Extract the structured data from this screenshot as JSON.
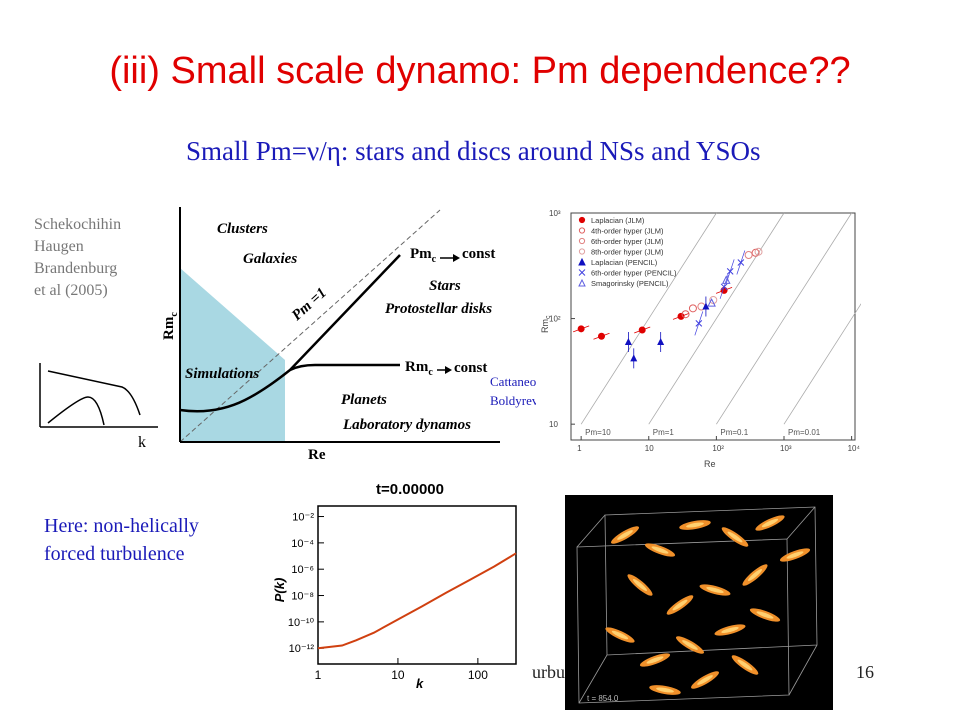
{
  "slide": {
    "title": "(iii) Small scale dynamo: Pm dependence??",
    "subtitle": "Small Pm=ν/η:  stars and discs around NSs and YSOs",
    "authors": "Schekochihin\nHaugen\nBrandenburg\net al (2005)",
    "cattaneo": "Cattaneo,\nBoldyrev",
    "note": "Here: non-helically\nforced turbulence",
    "footer": "urbu",
    "page_number": "16"
  },
  "sketch": {
    "xlabel": "k"
  },
  "regime_diagram": {
    "xlabel": "Re",
    "ylabel": "Rm",
    "ylabel_sub": "c",
    "regions": [
      "Clusters",
      "Galaxies",
      "Stars",
      "Protostellar disks",
      "Simulations",
      "Planets",
      "Laboratory dynamos"
    ],
    "line_label": "Pm =1",
    "upper_branch": "Pm",
    "upper_branch_sub": "c",
    "upper_branch_const": "const",
    "lower_branch": "Rm",
    "lower_branch_sub": "c",
    "lower_branch_const": "const",
    "colors": {
      "simulations_fill": "#a9d8e3"
    }
  },
  "chart_data": [
    {
      "type": "scatter",
      "xlabel": "Re",
      "ylabel": "Rm",
      "ylabel_sub": "c",
      "x_scale": "log",
      "y_scale": "log",
      "x_ticks": [
        "1",
        "10",
        "10²",
        "10³",
        "10⁴"
      ],
      "y_ticks": [
        "10",
        "10²",
        "10³"
      ],
      "pm_lines": [
        "Pm=10",
        "Pm=1",
        "Pm=0.1",
        "Pm=0.01"
      ],
      "legend_position": "top-left",
      "series": [
        {
          "name": "Laplacian (JLM)",
          "color": "#e00000",
          "marker": "filled-circle",
          "points": [
            [
              1,
              80
            ],
            [
              2,
              68
            ],
            [
              8,
              78
            ],
            [
              30,
              105
            ],
            [
              130,
              185
            ]
          ]
        },
        {
          "name": "4th-order hyper (JLM)",
          "color": "#e06060",
          "marker": "open-circle",
          "points": [
            [
              35,
              110
            ],
            [
              45,
              125
            ],
            [
              380,
              420
            ]
          ]
        },
        {
          "name": "6th-order hyper (JLM)",
          "color": "#e08080",
          "marker": "open-circle",
          "points": [
            [
              60,
              130
            ],
            [
              300,
              400
            ]
          ]
        },
        {
          "name": "8th-order hyper (JLM)",
          "color": "#e0a0a0",
          "marker": "open-circle",
          "points": [
            [
              90,
              150
            ],
            [
              420,
              430
            ]
          ]
        },
        {
          "name": "Laplacian (PENCIL)",
          "color": "#1010c0",
          "marker": "filled-triangle",
          "points": [
            [
              5,
              60
            ],
            [
              6,
              42
            ],
            [
              15,
              60
            ],
            [
              70,
              130
            ]
          ]
        },
        {
          "name": "6th-order hyper (PENCIL)",
          "color": "#4040e0",
          "marker": "cross",
          "points": [
            [
              55,
              90
            ],
            [
              130,
              200
            ],
            [
              160,
              280
            ],
            [
              230,
              340
            ]
          ]
        },
        {
          "name": "Smagorinsky (PENCIL)",
          "color": "#6060e0",
          "marker": "open-triangle",
          "points": [
            [
              85,
              140
            ],
            [
              140,
              230
            ]
          ]
        }
      ]
    },
    {
      "type": "line",
      "title": "t=0.00000",
      "xlabel": "k",
      "ylabel": "P(k)",
      "x_scale": "log",
      "y_scale": "log",
      "xlim": [
        1,
        300
      ],
      "ylim": [
        1e-13,
        0.1
      ],
      "x_ticks": [
        "1",
        "10",
        "100"
      ],
      "y_ticks": [
        "10⁻²",
        "10⁻⁴",
        "10⁻⁶",
        "10⁻⁸",
        "10⁻¹⁰",
        "10⁻¹²"
      ],
      "series": [
        {
          "color": "#d04010",
          "x": [
            1,
            2,
            3,
            5,
            10,
            20,
            40,
            80,
            160,
            300
          ],
          "y": [
            1e-12,
            1.6e-12,
            4e-12,
            1.5e-11,
            1.5e-10,
            1.5e-09,
            1.6e-08,
            1.6e-07,
            1.6e-06,
            1.6e-05
          ]
        }
      ]
    }
  ],
  "render": {
    "time_label": "t = 854.0"
  }
}
